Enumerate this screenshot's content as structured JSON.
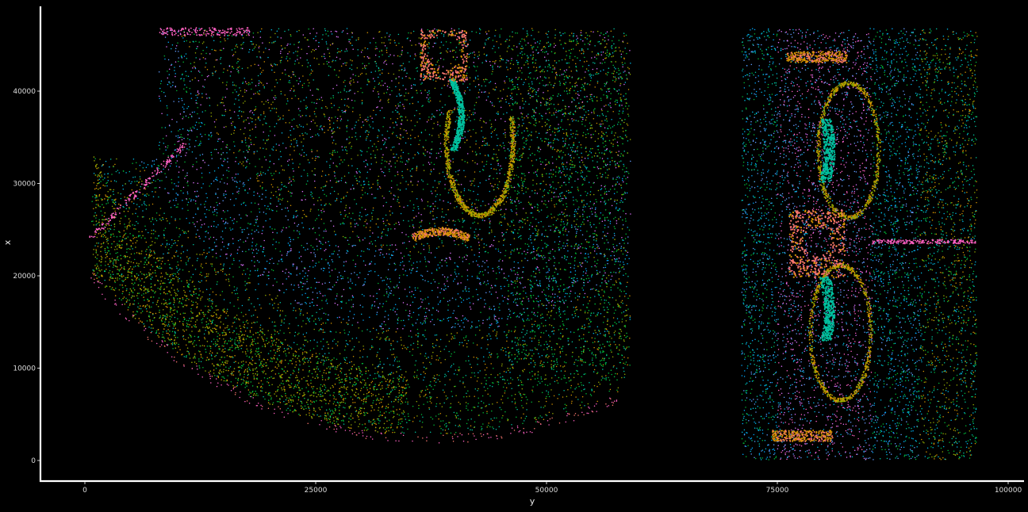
{
  "chart_data": {
    "type": "scatter",
    "xlabel": "y",
    "ylabel": "x",
    "xlim": [
      -8500,
      101000
    ],
    "ylim": [
      -2000,
      49000
    ],
    "x_ticks": [
      0,
      25000,
      50000,
      75000,
      100000
    ],
    "x_tick_labels": [
      "0",
      "25000",
      "50000",
      "75000",
      "100000"
    ],
    "y_ticks": [
      0,
      10000,
      20000,
      30000,
      40000
    ],
    "y_tick_labels": [
      "0",
      "10000",
      "20000",
      "30000",
      "40000"
    ],
    "grid": false,
    "background": "#000000",
    "axis_color": "#ffffff",
    "cluster_colors": [
      "#F8766D",
      "#D39200",
      "#93AA00",
      "#00BA38",
      "#00C19F",
      "#00B9E3",
      "#619CFF",
      "#DB72FB",
      "#FF61C3",
      "#00A9FF"
    ],
    "sections": [
      {
        "name": "left-section",
        "x_range": [
          0,
          59000
        ],
        "y_range": [
          0,
          47000
        ],
        "shape": "quarter-disc hemisphere slice with hippocampus and ventricle"
      },
      {
        "name": "right-section",
        "x_range": [
          71000,
          96000
        ],
        "y_range": [
          0,
          47000
        ],
        "shape": "rectangular coronal slab with mirrored hippocampi"
      }
    ]
  }
}
